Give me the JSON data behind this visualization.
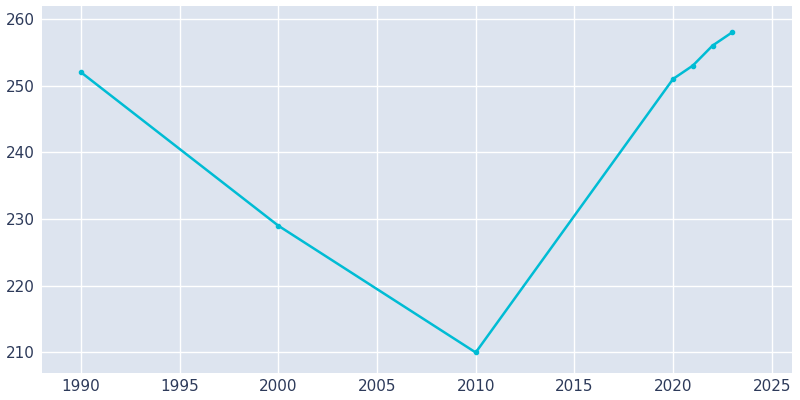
{
  "years": [
    1990,
    2000,
    2010,
    2020,
    2021,
    2022,
    2023
  ],
  "population": [
    252,
    229,
    210,
    251,
    253,
    256,
    258
  ],
  "line_color": "#00bcd4",
  "marker": "o",
  "marker_size": 3,
  "line_width": 1.8,
  "plot_bg_color": "#dde4ef",
  "fig_bg_color": "#ffffff",
  "grid_color": "#ffffff",
  "xlim": [
    1988,
    2026
  ],
  "ylim": [
    207,
    262
  ],
  "xticks": [
    1990,
    1995,
    2000,
    2005,
    2010,
    2015,
    2020,
    2025
  ],
  "yticks": [
    210,
    220,
    230,
    240,
    250,
    260
  ],
  "tick_label_color": "#2d3a5a",
  "tick_fontsize": 11,
  "tick_direction": "out"
}
